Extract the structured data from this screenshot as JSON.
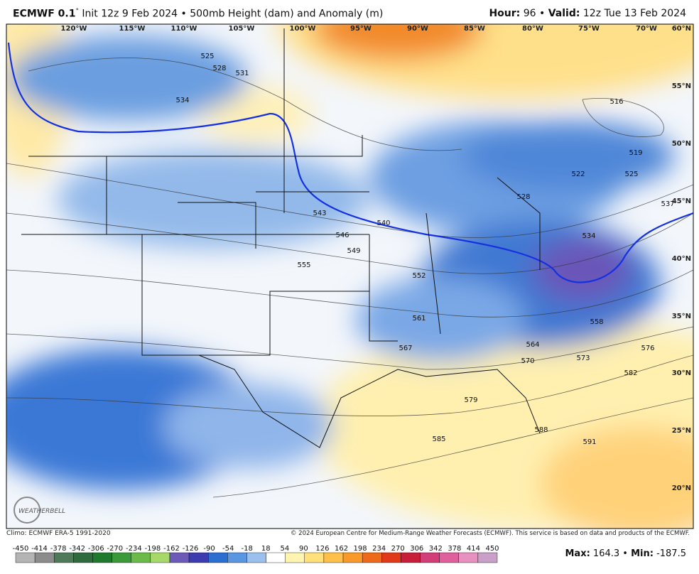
{
  "header": {
    "model": "ECMWF 0.1",
    "degree": "°",
    "title": "Init 12z 9 Feb 2024 • 500mb Height (dam) and Anomaly (m)",
    "hour_label": "Hour:",
    "hour": 96,
    "valid_label": "Valid:",
    "valid": "12z Tue 13 Feb 2024"
  },
  "map": {
    "longitudes": [
      "120°W",
      "115°W",
      "110°W",
      "105°W",
      "100°W",
      "95°W",
      "90°W",
      "85°W",
      "80°W",
      "75°W",
      "70°W"
    ],
    "latitudes": [
      "60°N",
      "55°N",
      "50°N",
      "45°N",
      "40°N",
      "35°N",
      "30°N",
      "25°N",
      "20°N"
    ],
    "contour_labels": [
      525,
      528,
      531,
      534,
      516,
      519,
      522,
      525,
      528,
      537,
      534,
      543,
      540,
      546,
      549,
      555,
      552,
      561,
      558,
      564,
      567,
      570,
      573,
      576,
      582,
      579,
      588,
      585,
      591
    ],
    "logo": "WEATHERBELL"
  },
  "footer": {
    "climo": "Climo: ECMWF ERA-5 1991-2020",
    "copyright": "© 2024 European Centre for Medium-Range Weather Forecasts (ECMWF). This service is based on data and products of the ECMWF.",
    "colorbar_labels": [
      -450,
      -414,
      -378,
      -342,
      -306,
      -270,
      -234,
      -198,
      -162,
      -126,
      -90,
      -54,
      -18,
      18,
      54,
      90,
      126,
      162,
      198,
      234,
      270,
      306,
      342,
      378,
      414,
      450
    ],
    "max_label": "Max:",
    "max": 164.3,
    "min_label": "Min:",
    "min": -187.5
  }
}
